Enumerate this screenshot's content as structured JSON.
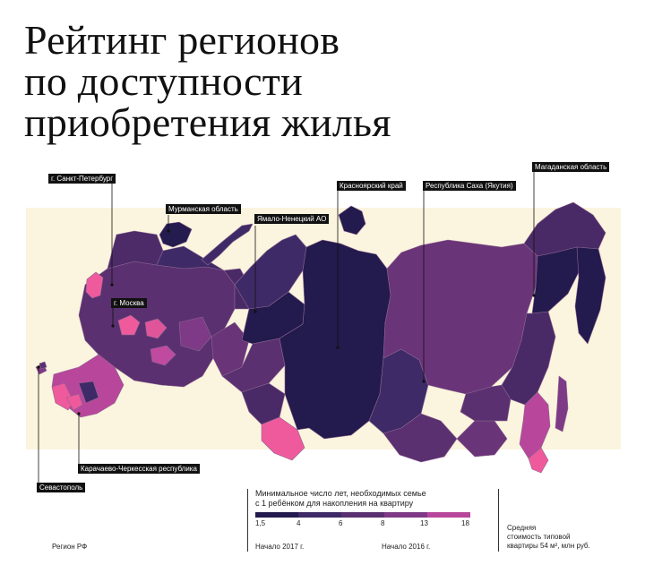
{
  "title": {
    "lines": [
      "Рейтинг регионов",
      "по доступности",
      "приобретения жилья"
    ]
  },
  "callouts": [
    {
      "key": "spb",
      "label": "г. Санкт-Петербург"
    },
    {
      "key": "murmansk",
      "label": "Мурманская область"
    },
    {
      "key": "yamal",
      "label": "Ямало-Ненецкий АО"
    },
    {
      "key": "krasnoyarsk",
      "label": "Красноярский край"
    },
    {
      "key": "yakutia",
      "label": "Республика Саха (Якутия)"
    },
    {
      "key": "magadan",
      "label": "Магаданская область"
    },
    {
      "key": "moscow",
      "label": "г. Москва"
    },
    {
      "key": "kchr",
      "label": "Карачаево-Черкесская республика"
    },
    {
      "key": "sevastopol",
      "label": "Севастополь"
    }
  ],
  "legend": {
    "title_line1": "Минимальное число лет, необходимых семье",
    "title_line2": "с 1 ребёнком для накопления на квартиру",
    "ticks": [
      "1,5",
      "4",
      "6",
      "8",
      "13",
      "18"
    ],
    "colors": [
      "#231a4d",
      "#3e2a66",
      "#5a3070",
      "#7e3a86",
      "#b8479c",
      "#ef5a9c"
    ]
  },
  "footer": {
    "region_label": "Регион РФ",
    "start_2017": "Начало 2017 г.",
    "start_2016": "Начало 2016 г.",
    "price_line1": "Средняя",
    "price_line2": "стоимость типовой",
    "price_line3": "квартиры 54 м², млн руб."
  },
  "colors": {
    "background": "#fbf4de",
    "text": "#111111"
  }
}
